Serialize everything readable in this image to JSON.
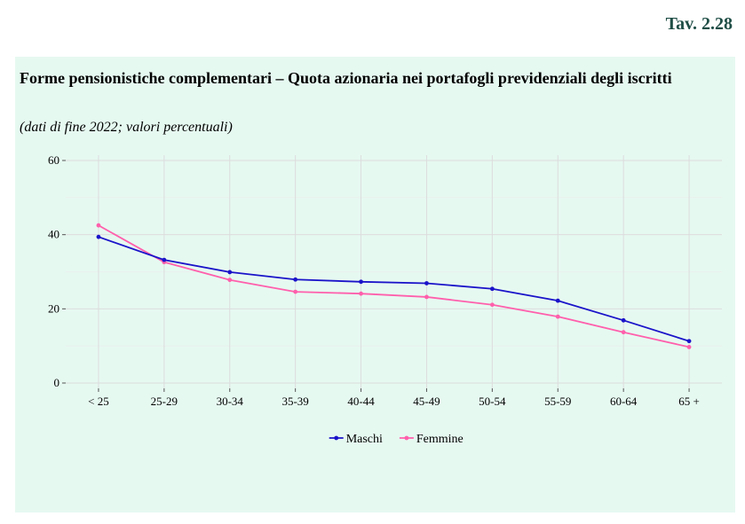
{
  "header": {
    "table_number": "Tav. 2.28"
  },
  "title": "Forme pensionistiche complementari – Quota azionaria nei portafogli previdenziali degli iscritti",
  "subtitle": "(dati di fine 2022; valori percentuali)",
  "chart_data": {
    "type": "line",
    "title": "",
    "xlabel": "",
    "ylabel": "",
    "categories": [
      "< 25",
      "25-29",
      "30-34",
      "35-39",
      "40-44",
      "45-49",
      "50-54",
      "55-59",
      "60-64",
      "65 +"
    ],
    "ylim": [
      0,
      60
    ],
    "yticks": [
      0,
      20,
      40,
      60
    ],
    "grid": true,
    "legend_position": "bottom",
    "series": [
      {
        "name": "Maschi",
        "color": "#1a13c9",
        "values": [
          39.4,
          33.2,
          29.9,
          27.9,
          27.3,
          26.9,
          25.4,
          22.2,
          16.9,
          11.3
        ]
      },
      {
        "name": "Femmine",
        "color": "#ff5fac",
        "values": [
          42.5,
          32.6,
          27.8,
          24.6,
          24.1,
          23.2,
          21.1,
          17.9,
          13.7,
          9.7
        ]
      }
    ]
  }
}
